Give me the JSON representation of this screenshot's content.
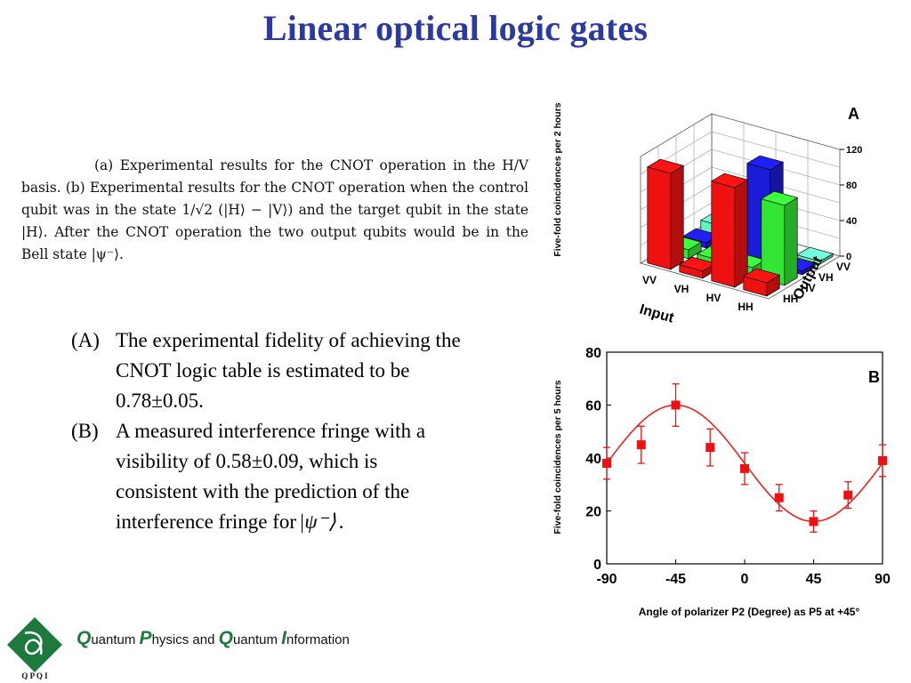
{
  "title": "Linear optical logic gates",
  "caption": {
    "text": "(a) Experimental results for the CNOT operation in the H/V basis. (b) Experimental results for the CNOT operation when the control qubit was in the state 1/√2 (|H⟩ − |V⟩) and the target qubit in the state |H⟩. After the CNOT operation the two output qubits would be in the Bell state |ψ⁻⟩."
  },
  "bullets": [
    {
      "marker": "(A)",
      "text": "The experimental fidelity of achieving the CNOT logic table is estimated to be 0.78±0.05."
    },
    {
      "marker": "(B)",
      "text": "A measured interference fringe with a visibility of 0.58±0.09, which is consistent with the prediction of the interference fringe for"
    },
    {
      "ket": "|ψ⁻⟩",
      "end": "."
    }
  ],
  "chart_data": [
    {
      "type": "bar3d",
      "panel_label": "A",
      "ylabel": "Five-fold coincidences per 2 hours",
      "xlabel": "Input",
      "zlabel": "Output",
      "zticks": [
        "0",
        "40",
        "80",
        "120"
      ],
      "inputs": [
        "VV",
        "VH",
        "HV",
        "HH"
      ],
      "outputs": [
        "HH",
        "HV",
        "VH",
        "VV"
      ],
      "series": [
        {
          "output": "VV",
          "values": [
            12,
            3,
            0,
            3
          ],
          "color": "#66f2c0"
        },
        {
          "output": "VH",
          "values": [
            6,
            4,
            108,
            4
          ],
          "color": "#1c1cd8"
        },
        {
          "output": "HV",
          "values": [
            10,
            8,
            10,
            90
          ],
          "color": "#33e633"
        },
        {
          "output": "HH",
          "values": [
            108,
            8,
            112,
            15
          ],
          "color": "#ee1111"
        }
      ],
      "zlim": [
        0,
        120
      ]
    },
    {
      "type": "scatter",
      "panel_label": "B",
      "xlabel": "Angle of polarizer P2 (Degree) as P5 at +45°",
      "ylabel": "Five-fold coincidences per 5 hours",
      "xlim": [
        -90,
        90
      ],
      "ylim": [
        0,
        80
      ],
      "xticks": [
        "-90",
        "-45",
        "0",
        "45",
        "90"
      ],
      "yticks": [
        "0",
        "20",
        "40",
        "60",
        "80"
      ],
      "points": [
        {
          "x": -90,
          "y": 38,
          "err": 6
        },
        {
          "x": -67.5,
          "y": 45,
          "err": 7
        },
        {
          "x": -45,
          "y": 60,
          "err": 8
        },
        {
          "x": -22.5,
          "y": 44,
          "err": 7
        },
        {
          "x": 0,
          "y": 36,
          "err": 6
        },
        {
          "x": 22.5,
          "y": 25,
          "err": 5
        },
        {
          "x": 45,
          "y": 16,
          "err": 4
        },
        {
          "x": 67.5,
          "y": 26,
          "err": 5
        },
        {
          "x": 90,
          "y": 39,
          "err": 6
        }
      ],
      "fit": {
        "offset": 38,
        "amplitude": 22,
        "phase_deg": -45,
        "color": "#ee2222"
      },
      "marker_color": "#ee1111"
    }
  ],
  "footer": {
    "logo_letters": "Q P Q I",
    "initials": [
      "Q",
      "P",
      "Q",
      "I"
    ],
    "words": [
      "uantum ",
      "hysics and ",
      "uantum ",
      "nformation"
    ]
  }
}
